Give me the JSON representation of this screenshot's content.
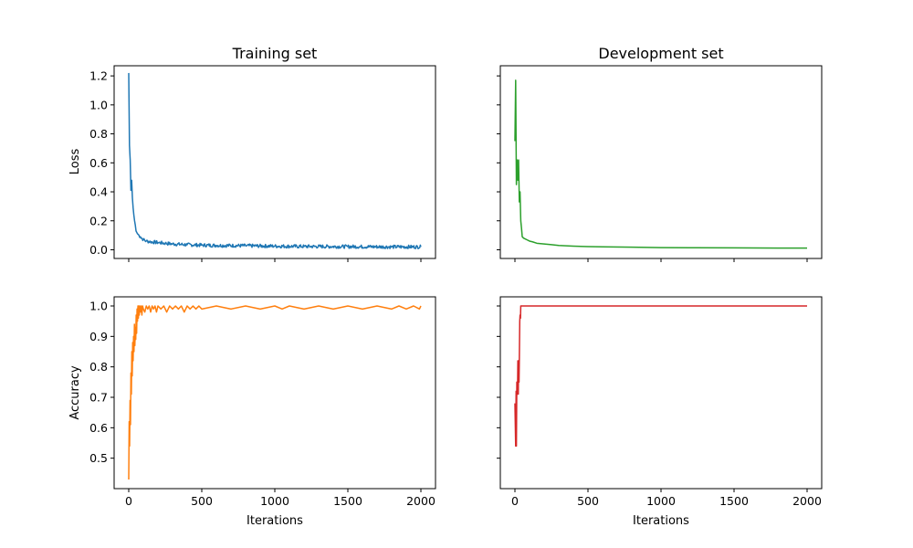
{
  "chart_data": [
    {
      "type": "line",
      "title": "Training set",
      "xlabel": "",
      "ylabel": "Loss",
      "xlim": [
        -100,
        2100
      ],
      "ylim": [
        -0.06,
        1.27
      ],
      "xticks": [
        0,
        500,
        1000,
        1500,
        2000
      ],
      "xtick_labels": [],
      "yticks": [
        0.0,
        0.2,
        0.4,
        0.6,
        0.8,
        1.0,
        1.2
      ],
      "ytick_labels": [
        "0.0",
        "0.2",
        "0.4",
        "0.6",
        "0.8",
        "1.0",
        "1.2"
      ],
      "color": "#1f77b4",
      "noise": 0.012,
      "series": [
        {
          "x": [
            0,
            5,
            10,
            15,
            20,
            25,
            30,
            35,
            40,
            45,
            50,
            60,
            70,
            80,
            100,
            120,
            150,
            200,
            250,
            300,
            400,
            500,
            600,
            800,
            1000,
            1200,
            1500,
            1800,
            2000
          ],
          "y": [
            1.22,
            0.72,
            0.62,
            0.41,
            0.48,
            0.36,
            0.29,
            0.24,
            0.2,
            0.17,
            0.13,
            0.11,
            0.1,
            0.09,
            0.07,
            0.06,
            0.055,
            0.05,
            0.045,
            0.04,
            0.035,
            0.032,
            0.03,
            0.028,
            0.025,
            0.023,
            0.022,
            0.02,
            0.02
          ]
        }
      ]
    },
    {
      "type": "line",
      "title": "Development set",
      "xlabel": "",
      "ylabel": "",
      "xlim": [
        -100,
        2100
      ],
      "ylim": [
        -0.06,
        1.27
      ],
      "xticks": [
        0,
        500,
        1000,
        1500,
        2000
      ],
      "xtick_labels": [],
      "yticks": [
        0.0,
        0.2,
        0.4,
        0.6,
        0.8,
        1.0,
        1.2
      ],
      "ytick_labels": [],
      "color": "#2ca02c",
      "noise": 0,
      "series": [
        {
          "x": [
            0,
            5,
            10,
            15,
            20,
            25,
            30,
            35,
            40,
            45,
            50,
            60,
            70,
            80,
            100,
            120,
            150,
            200,
            250,
            300,
            400,
            500,
            600,
            800,
            1000,
            1200,
            1500,
            1800,
            2000
          ],
          "y": [
            0.75,
            1.17,
            0.45,
            0.62,
            0.48,
            0.62,
            0.33,
            0.4,
            0.2,
            0.15,
            0.09,
            0.08,
            0.075,
            0.07,
            0.06,
            0.055,
            0.045,
            0.04,
            0.035,
            0.03,
            0.025,
            0.022,
            0.02,
            0.018,
            0.015,
            0.014,
            0.013,
            0.012,
            0.012
          ]
        }
      ]
    },
    {
      "type": "line",
      "title": "",
      "xlabel": "Iterations",
      "ylabel": "Accuracy",
      "xlim": [
        -100,
        2100
      ],
      "ylim": [
        0.4,
        1.03
      ],
      "xticks": [
        0,
        500,
        1000,
        1500,
        2000
      ],
      "xtick_labels": [
        "0",
        "500",
        "1000",
        "1500",
        "2000"
      ],
      "yticks": [
        0.5,
        0.6,
        0.7,
        0.8,
        0.9,
        1.0
      ],
      "ytick_labels": [
        "0.5",
        "0.6",
        "0.7",
        "0.8",
        "0.9",
        "1.0"
      ],
      "color": "#ff7f0e",
      "noise": 0,
      "series": [
        {
          "x": [
            0,
            3,
            6,
            9,
            12,
            15,
            18,
            21,
            24,
            27,
            30,
            33,
            36,
            39,
            42,
            45,
            48,
            51,
            54,
            57,
            60,
            63,
            66,
            69,
            72,
            75,
            80,
            85,
            90,
            95,
            100,
            110,
            120,
            130,
            140,
            150,
            160,
            170,
            180,
            190,
            200,
            220,
            240,
            260,
            280,
            300,
            320,
            340,
            360,
            380,
            400,
            420,
            440,
            460,
            480,
            500,
            600,
            700,
            800,
            900,
            1000,
            1050,
            1100,
            1200,
            1300,
            1400,
            1500,
            1600,
            1700,
            1800,
            1850,
            1900,
            1950,
            1990,
            2000
          ],
          "y": [
            0.43,
            0.62,
            0.54,
            0.69,
            0.61,
            0.78,
            0.71,
            0.85,
            0.77,
            0.88,
            0.82,
            0.9,
            0.85,
            0.94,
            0.87,
            0.93,
            0.89,
            0.97,
            0.91,
            0.99,
            0.95,
            1.0,
            0.96,
            1.0,
            0.97,
            1.0,
            0.98,
            1.0,
            0.97,
            1.0,
            0.99,
            0.98,
            1.0,
            0.99,
            1.0,
            0.98,
            1.0,
            0.99,
            1.0,
            0.98,
            1.0,
            0.99,
            1.0,
            0.98,
            1.0,
            0.99,
            1.0,
            0.99,
            1.0,
            0.98,
            1.0,
            0.99,
            1.0,
            0.99,
            1.0,
            0.99,
            1.0,
            0.99,
            1.0,
            0.99,
            1.0,
            0.99,
            1.0,
            0.99,
            1.0,
            0.99,
            1.0,
            0.99,
            1.0,
            0.99,
            1.0,
            0.99,
            1.0,
            0.99,
            1.0
          ]
        }
      ]
    },
    {
      "type": "line",
      "title": "",
      "xlabel": "Iterations",
      "ylabel": "",
      "xlim": [
        -100,
        2100
      ],
      "ylim": [
        0.4,
        1.03
      ],
      "xticks": [
        0,
        500,
        1000,
        1500,
        2000
      ],
      "xtick_labels": [
        "0",
        "500",
        "1000",
        "1500",
        "2000"
      ],
      "yticks": [
        0.5,
        0.6,
        0.7,
        0.8,
        0.9,
        1.0
      ],
      "ytick_labels": [],
      "color": "#d62728",
      "noise": 0,
      "series": [
        {
          "x": [
            0,
            5,
            8,
            10,
            13,
            15,
            18,
            20,
            23,
            25,
            28,
            30,
            33,
            35,
            38,
            40,
            45,
            50,
            60,
            100,
            500,
            1000,
            1500,
            2000
          ],
          "y": [
            0.68,
            0.54,
            0.72,
            0.54,
            0.75,
            0.71,
            0.73,
            0.82,
            0.71,
            0.82,
            0.75,
            0.82,
            0.95,
            0.97,
            0.96,
            1.0,
            1.0,
            1.0,
            1.0,
            1.0,
            1.0,
            1.0,
            1.0,
            1.0
          ]
        }
      ]
    }
  ]
}
